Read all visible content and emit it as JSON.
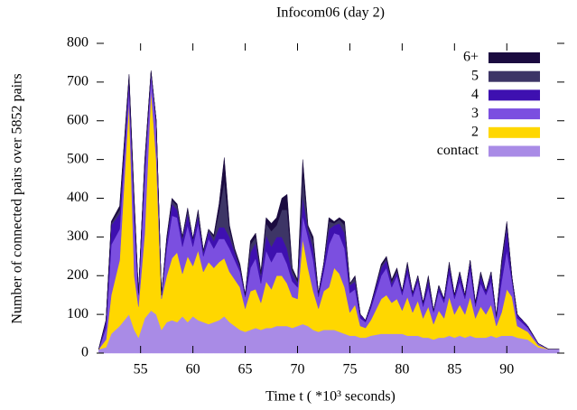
{
  "chart_data": {
    "type": "stacked_area",
    "title": "Infocom06 (day 2)",
    "x_label": "Time t ( *10³ seconds)",
    "y_label": "Number of connected pairs over 5852 pairs",
    "x": [
      51,
      51.7,
      52.2,
      53,
      53.9,
      54.4,
      54.8,
      55.4,
      56,
      56.5,
      57,
      57.5,
      58,
      58.5,
      59,
      59.5,
      60,
      60.5,
      61,
      61.5,
      62,
      62.5,
      63,
      63.5,
      64,
      64.5,
      65,
      65.5,
      66,
      66.5,
      67,
      67.5,
      68,
      68.5,
      69,
      69.5,
      70,
      70.5,
      71,
      71.5,
      72,
      72.5,
      73,
      73.5,
      74,
      74.5,
      75,
      75.5,
      76,
      76.5,
      77,
      78,
      78.5,
      79,
      79.5,
      80,
      80.5,
      81,
      81.5,
      82,
      82.5,
      83,
      83.5,
      84,
      84.5,
      85,
      85.5,
      86,
      86.5,
      87,
      87.5,
      88,
      88.5,
      89,
      89.5,
      90,
      90.5,
      91,
      92,
      93,
      94,
      95
    ],
    "series": [
      {
        "name": "contact",
        "color": "#a98be6",
        "values": [
          10,
          15,
          50,
          70,
          100,
          60,
          40,
          90,
          110,
          100,
          60,
          80,
          85,
          80,
          95,
          80,
          95,
          85,
          80,
          75,
          80,
          85,
          95,
          80,
          70,
          60,
          55,
          60,
          65,
          60,
          65,
          65,
          70,
          70,
          70,
          65,
          70,
          75,
          70,
          60,
          55,
          60,
          60,
          60,
          55,
          50,
          45,
          45,
          40,
          40,
          45,
          50,
          50,
          50,
          50,
          50,
          45,
          45,
          45,
          40,
          40,
          35,
          40,
          40,
          45,
          40,
          45,
          40,
          45,
          40,
          40,
          40,
          45,
          40,
          45,
          45,
          45,
          40,
          35,
          15,
          10,
          10
        ]
      },
      {
        "name": "2",
        "color": "#ffd700",
        "values": [
          0,
          20,
          100,
          170,
          550,
          140,
          80,
          220,
          570,
          400,
          80,
          120,
          160,
          180,
          110,
          170,
          130,
          180,
          130,
          160,
          140,
          150,
          150,
          130,
          120,
          110,
          60,
          100,
          100,
          70,
          120,
          100,
          130,
          130,
          110,
          80,
          70,
          220,
          150,
          100,
          60,
          100,
          110,
          160,
          150,
          120,
          60,
          80,
          30,
          25,
          40,
          90,
          100,
          80,
          90,
          60,
          100,
          60,
          90,
          50,
          80,
          40,
          70,
          50,
          100,
          60,
          80,
          60,
          100,
          50,
          80,
          60,
          80,
          30,
          60,
          120,
          100,
          30,
          20,
          5,
          0,
          0
        ]
      },
      {
        "name": "3",
        "color": "#7b4fe0",
        "values": [
          0,
          30,
          130,
          80,
          40,
          150,
          30,
          150,
          40,
          90,
          10,
          70,
          110,
          90,
          70,
          80,
          50,
          70,
          40,
          60,
          50,
          60,
          50,
          60,
          50,
          40,
          30,
          60,
          80,
          50,
          80,
          70,
          60,
          60,
          50,
          40,
          30,
          60,
          80,
          80,
          30,
          50,
          110,
          90,
          100,
          100,
          50,
          40,
          20,
          15,
          30,
          60,
          70,
          40,
          60,
          40,
          60,
          40,
          50,
          30,
          50,
          30,
          50,
          40,
          60,
          40,
          60,
          40,
          70,
          30,
          60,
          50,
          60,
          20,
          80,
          100,
          40,
          20,
          10,
          5,
          0,
          0
        ]
      },
      {
        "name": "4",
        "color": "#3e10b0",
        "values": [
          0,
          20,
          50,
          40,
          20,
          30,
          5,
          30,
          5,
          10,
          0,
          20,
          30,
          20,
          20,
          30,
          20,
          20,
          10,
          20,
          20,
          30,
          30,
          30,
          20,
          10,
          5,
          40,
          40,
          20,
          40,
          40,
          40,
          40,
          40,
          20,
          10,
          50,
          20,
          30,
          10,
          20,
          40,
          20,
          30,
          40,
          20,
          20,
          10,
          5,
          10,
          20,
          20,
          10,
          10,
          10,
          20,
          10,
          10,
          10,
          20,
          5,
          10,
          10,
          20,
          10,
          20,
          10,
          20,
          10,
          20,
          10,
          20,
          5,
          40,
          60,
          10,
          10,
          5,
          0,
          0,
          0
        ]
      },
      {
        "name": "5",
        "color": "#3d3566",
        "values": [
          0,
          0,
          5,
          10,
          5,
          10,
          0,
          5,
          2,
          0,
          0,
          5,
          10,
          10,
          5,
          10,
          0,
          10,
          5,
          5,
          10,
          40,
          120,
          20,
          5,
          5,
          0,
          20,
          15,
          5,
          30,
          40,
          30,
          70,
          100,
          10,
          5,
          60,
          5,
          20,
          0,
          0,
          20,
          5,
          10,
          20,
          5,
          10,
          0,
          0,
          0,
          5,
          5,
          5,
          5,
          0,
          5,
          0,
          5,
          0,
          5,
          0,
          5,
          0,
          5,
          0,
          5,
          0,
          5,
          0,
          5,
          0,
          5,
          0,
          10,
          10,
          0,
          0,
          0,
          0,
          0,
          0
        ]
      },
      {
        "name": "6+",
        "color": "#1b0b40",
        "values": [
          0,
          0,
          5,
          10,
          5,
          5,
          0,
          5,
          3,
          0,
          0,
          5,
          5,
          5,
          0,
          5,
          0,
          5,
          0,
          0,
          5,
          20,
          60,
          10,
          5,
          5,
          0,
          10,
          10,
          5,
          15,
          20,
          20,
          30,
          40,
          5,
          5,
          35,
          5,
          10,
          0,
          0,
          10,
          5,
          5,
          10,
          0,
          5,
          0,
          0,
          0,
          5,
          5,
          5,
          5,
          0,
          5,
          0,
          0,
          0,
          5,
          0,
          0,
          0,
          5,
          0,
          0,
          0,
          0,
          0,
          5,
          0,
          0,
          0,
          5,
          5,
          0,
          0,
          0,
          0,
          0,
          0
        ]
      }
    ],
    "xlim": [
      50.8,
      95.5
    ],
    "xticks": [
      55,
      60,
      65,
      70,
      75,
      80,
      85,
      90
    ],
    "ylim": [
      0,
      800
    ],
    "yticks": [
      0,
      100,
      200,
      300,
      400,
      500,
      600,
      700,
      800
    ],
    "legend": "top-right"
  }
}
